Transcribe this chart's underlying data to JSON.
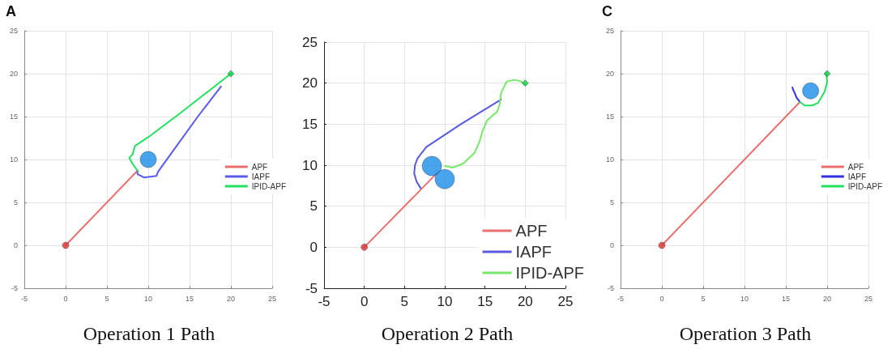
{
  "chart_data": [
    {
      "type": "line",
      "title": "A",
      "annotations": [
        "Operation 1 Path"
      ],
      "xlim": [
        -5,
        25
      ],
      "ylim": [
        -5,
        25
      ],
      "xticks": [
        -5,
        0,
        5,
        10,
        15,
        20,
        25
      ],
      "yticks": [
        -5,
        0,
        5,
        10,
        15,
        20,
        25
      ],
      "grid": true,
      "legend": "right",
      "marker": "none",
      "line_style": "solid",
      "series": [
        {
          "name": "APF",
          "color": "#e87070",
          "x": [
            0,
            8.7
          ],
          "values": [
            0,
            8.7
          ]
        },
        {
          "name": "IAPF",
          "color": "#5a5af0",
          "x": [
            8.7,
            8.7,
            9.1,
            9.5,
            11,
            11.2,
            13,
            16,
            18.8
          ],
          "values": [
            8.7,
            8.3,
            8.1,
            7.9,
            8.1,
            8.6,
            11,
            15,
            18.5
          ]
        },
        {
          "name": "IPID-APF",
          "color": "#22e060",
          "x": [
            8.7,
            8.1,
            7.7,
            8.1,
            8.4,
            10,
            14,
            20
          ],
          "values": [
            8.7,
            9.5,
            10.2,
            10.6,
            11.6,
            12.6,
            15.5,
            20
          ]
        },
        {
          "type": "scatter",
          "color": "#e03030",
          "marker": "circle",
          "x": [
            0
          ],
          "values": [
            0
          ]
        },
        {
          "type": "scatter",
          "color": "#10d040",
          "marker": "diamond",
          "x": [
            20
          ],
          "values": [
            20
          ]
        },
        {
          "type": "scatter",
          "color": "#1a8fe8",
          "marker": "circle",
          "x": [
            10
          ],
          "values": [
            10
          ]
        }
      ]
    },
    {
      "type": "line",
      "annotations": [
        "Operation 2 Path"
      ],
      "xlim": [
        -5,
        25
      ],
      "ylim": [
        -5,
        25
      ],
      "xticks": [
        -5,
        0,
        5,
        10,
        15,
        20,
        25
      ],
      "yticks": [
        -5,
        0,
        5,
        10,
        15,
        20,
        25
      ],
      "grid": true,
      "legend": "bottom right",
      "marker": "none",
      "line_style": "solid",
      "series": [
        {
          "name": "APF",
          "color": "#e87070",
          "x": [
            0,
            9
          ],
          "values": [
            0,
            9
          ]
        },
        {
          "name": "IAPF",
          "color": "#5a5ae0",
          "x": [
            7,
            6.5,
            6.2,
            6.3,
            6.6,
            7.7,
            12,
            17
          ],
          "values": [
            7.2,
            8,
            9,
            10,
            10.8,
            12.2,
            15,
            18
          ]
        },
        {
          "name": "IPID-APF",
          "color": "#77e86a",
          "x": [
            10,
            11,
            12.3,
            13.7,
            14.3,
            14.7,
            15.3,
            16.5,
            16.8,
            17,
            17.7,
            18.7,
            19.5,
            20
          ],
          "values": [
            9.9,
            9.7,
            10.2,
            11.5,
            12.8,
            14.2,
            15.5,
            16.5,
            17.3,
            18.8,
            20.2,
            20.4,
            20.2,
            19.8
          ]
        },
        {
          "type": "scatter",
          "color": "#e03030",
          "marker": "circle",
          "x": [
            0
          ],
          "values": [
            0
          ]
        },
        {
          "type": "scatter",
          "color": "#10d040",
          "marker": "diamond",
          "x": [
            20
          ],
          "values": [
            20
          ]
        },
        {
          "type": "scatter",
          "color": "#1a8fe8",
          "marker": "circle",
          "x": [
            8.4,
            10
          ],
          "values": [
            9.9,
            8.3
          ]
        }
      ]
    },
    {
      "type": "line",
      "title": "C",
      "annotations": [
        "Operation 3 Path"
      ],
      "xlim": [
        -5,
        25
      ],
      "ylim": [
        -5,
        25
      ],
      "xticks": [
        -5,
        0,
        5,
        10,
        15,
        20,
        25
      ],
      "yticks": [
        -5,
        0,
        5,
        10,
        15,
        20,
        25
      ],
      "grid": true,
      "legend": "right",
      "marker": "none",
      "line_style": "solid",
      "series": [
        {
          "name": "APF",
          "color": "#e87070",
          "x": [
            0,
            16.7
          ],
          "values": [
            0,
            16.7
          ]
        },
        {
          "name": "IAPF",
          "color": "#3030e0",
          "x": [
            16.7,
            16.3,
            16.1,
            15.9,
            15.8
          ],
          "values": [
            16.7,
            17.2,
            17.7,
            18.1,
            18.4
          ]
        },
        {
          "name": "IPID-APF",
          "color": "#22e060",
          "x": [
            16.7,
            17.3,
            18.2,
            18.9,
            19.7,
            20,
            19.9
          ],
          "values": [
            16.7,
            16.3,
            16.3,
            16.6,
            17.9,
            19,
            20.1
          ]
        },
        {
          "type": "scatter",
          "color": "#e03030",
          "marker": "circle",
          "x": [
            0
          ],
          "values": [
            0
          ]
        },
        {
          "type": "scatter",
          "color": "#10d040",
          "marker": "diamond",
          "x": [
            20
          ],
          "values": [
            20
          ]
        },
        {
          "type": "scatter",
          "color": "#1a8fe8",
          "marker": "circle",
          "x": [
            18
          ],
          "values": [
            18
          ]
        }
      ]
    }
  ]
}
